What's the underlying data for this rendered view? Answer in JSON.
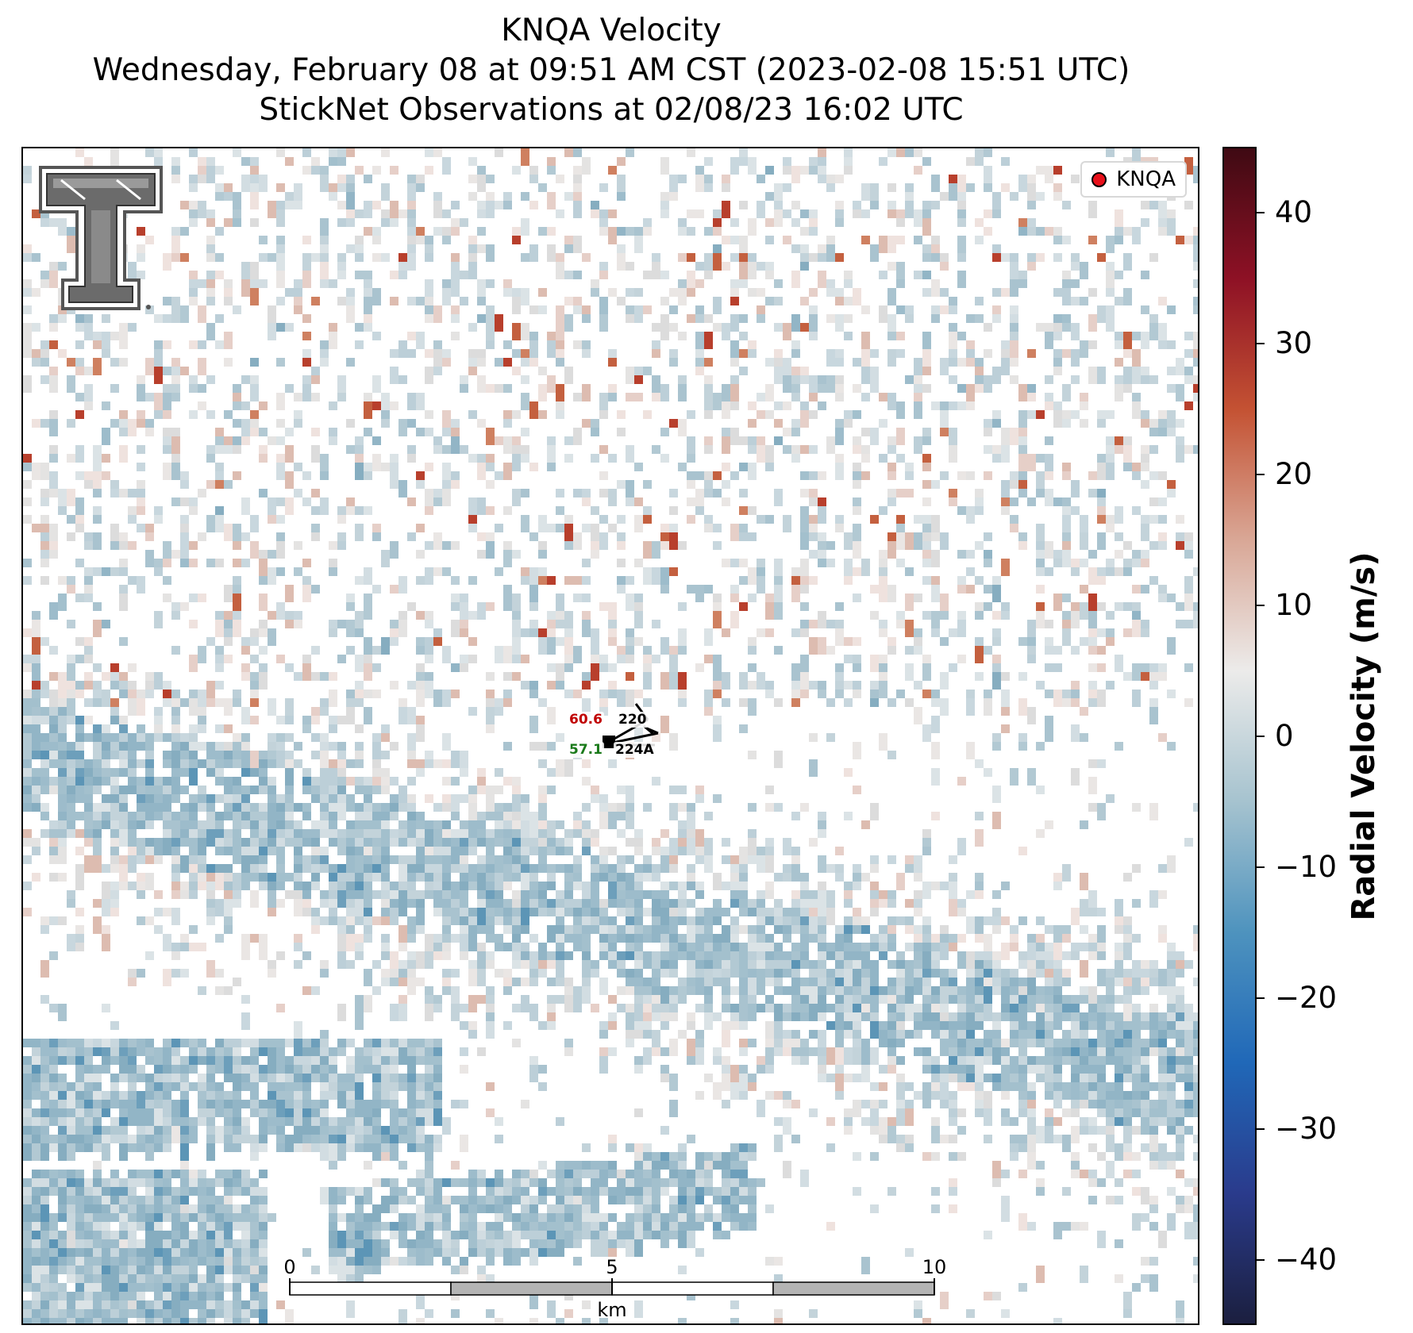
{
  "title": {
    "line1": "KNQA Velocity",
    "line2": "Wednesday, February 08 at 09:51 AM CST (2023-02-08 15:51 UTC)",
    "line3": "StickNet Observations at 02/08/23 16:02 UTC"
  },
  "legend": {
    "label": "KNQA",
    "marker_color": "#e8101a"
  },
  "colorbar": {
    "label": "Radial Velocity (m/s)",
    "ticks": [
      "40",
      "30",
      "20",
      "10",
      "0",
      "−10",
      "−20",
      "−30",
      "−40"
    ],
    "range": [
      -45,
      45
    ],
    "colors": [
      "#1b1f3f",
      "#2a3b8c",
      "#2068b8",
      "#4e93be",
      "#a6c3cf",
      "#ecebea",
      "#d9a796",
      "#c45233",
      "#8e1125",
      "#3f0a13"
    ]
  },
  "stations": [
    {
      "id": "220",
      "value": "60.6",
      "value_color": "#c00000"
    },
    {
      "id": "224A",
      "value": "57.1",
      "value_color": "#1a7a1a"
    }
  ],
  "scale_bar": {
    "labels": [
      "0",
      "5",
      "10"
    ],
    "unit": "km"
  },
  "logo": {
    "icon": "texas-tech-double-t-logo"
  }
}
